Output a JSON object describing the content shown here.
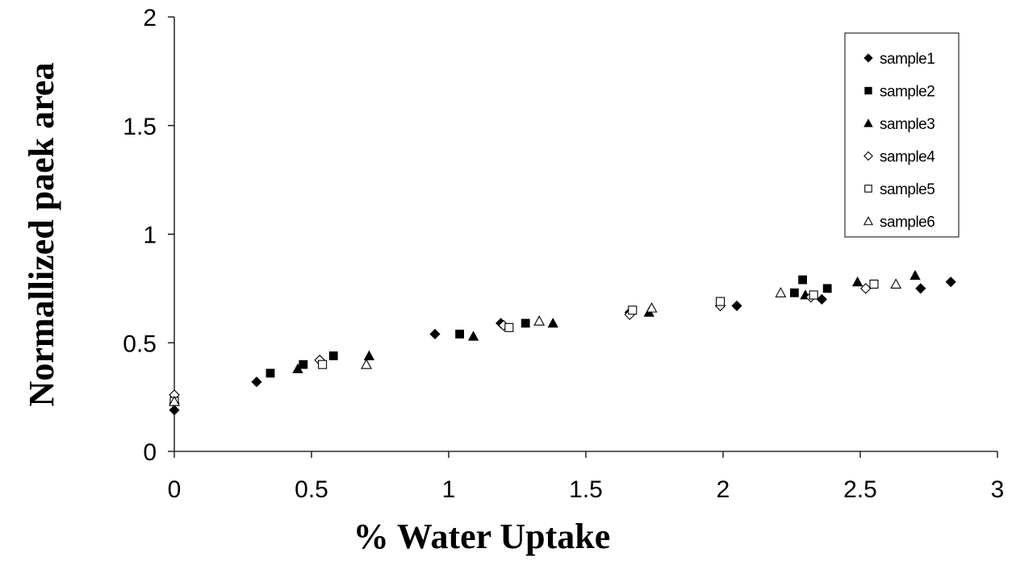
{
  "chart_data": {
    "type": "scatter",
    "xlabel": "% Water Uptake",
    "ylabel": "Normallized paek area",
    "xlim": [
      0,
      3
    ],
    "ylim": [
      0,
      2
    ],
    "xticks": [
      "0",
      "0.5",
      "1",
      "1.5",
      "2",
      "2.5",
      "3"
    ],
    "yticks": [
      "0",
      "0.5",
      "1",
      "1.5",
      "2"
    ],
    "grid": false,
    "legend_position": "top-right",
    "series": [
      {
        "name": "sample1",
        "marker": "diamond-filled",
        "x": [
          0,
          0.3,
          0.95,
          1.19,
          1.66,
          2.05,
          2.36,
          2.72,
          2.83
        ],
        "y": [
          0.19,
          0.32,
          0.54,
          0.59,
          0.64,
          0.67,
          0.7,
          0.75,
          0.78
        ]
      },
      {
        "name": "sample2",
        "marker": "square-filled",
        "x": [
          0,
          0.35,
          0.47,
          0.58,
          1.04,
          1.28,
          2.26,
          2.29,
          2.38
        ],
        "y": [
          0.23,
          0.36,
          0.4,
          0.44,
          0.54,
          0.59,
          0.73,
          0.79,
          0.75
        ]
      },
      {
        "name": "sample3",
        "marker": "triangle-filled",
        "x": [
          0,
          0.45,
          0.71,
          1.09,
          1.38,
          1.73,
          2.3,
          2.49,
          2.7
        ],
        "y": [
          0.24,
          0.38,
          0.44,
          0.53,
          0.59,
          0.64,
          0.72,
          0.78,
          0.81
        ]
      },
      {
        "name": "sample4",
        "marker": "diamond-open",
        "x": [
          0,
          0.53,
          1.2,
          1.66,
          1.99,
          2.32,
          2.52
        ],
        "y": [
          0.26,
          0.42,
          0.58,
          0.63,
          0.67,
          0.71,
          0.75
        ]
      },
      {
        "name": "sample5",
        "marker": "square-open",
        "x": [
          0,
          0.54,
          1.22,
          1.67,
          1.99,
          2.33,
          2.55
        ],
        "y": [
          0.23,
          0.4,
          0.57,
          0.65,
          0.69,
          0.72,
          0.77
        ]
      },
      {
        "name": "sample6",
        "marker": "triangle-open",
        "x": [
          0,
          0.7,
          1.33,
          1.74,
          2.21,
          2.63
        ],
        "y": [
          0.23,
          0.4,
          0.6,
          0.66,
          0.73,
          0.77
        ]
      }
    ]
  }
}
